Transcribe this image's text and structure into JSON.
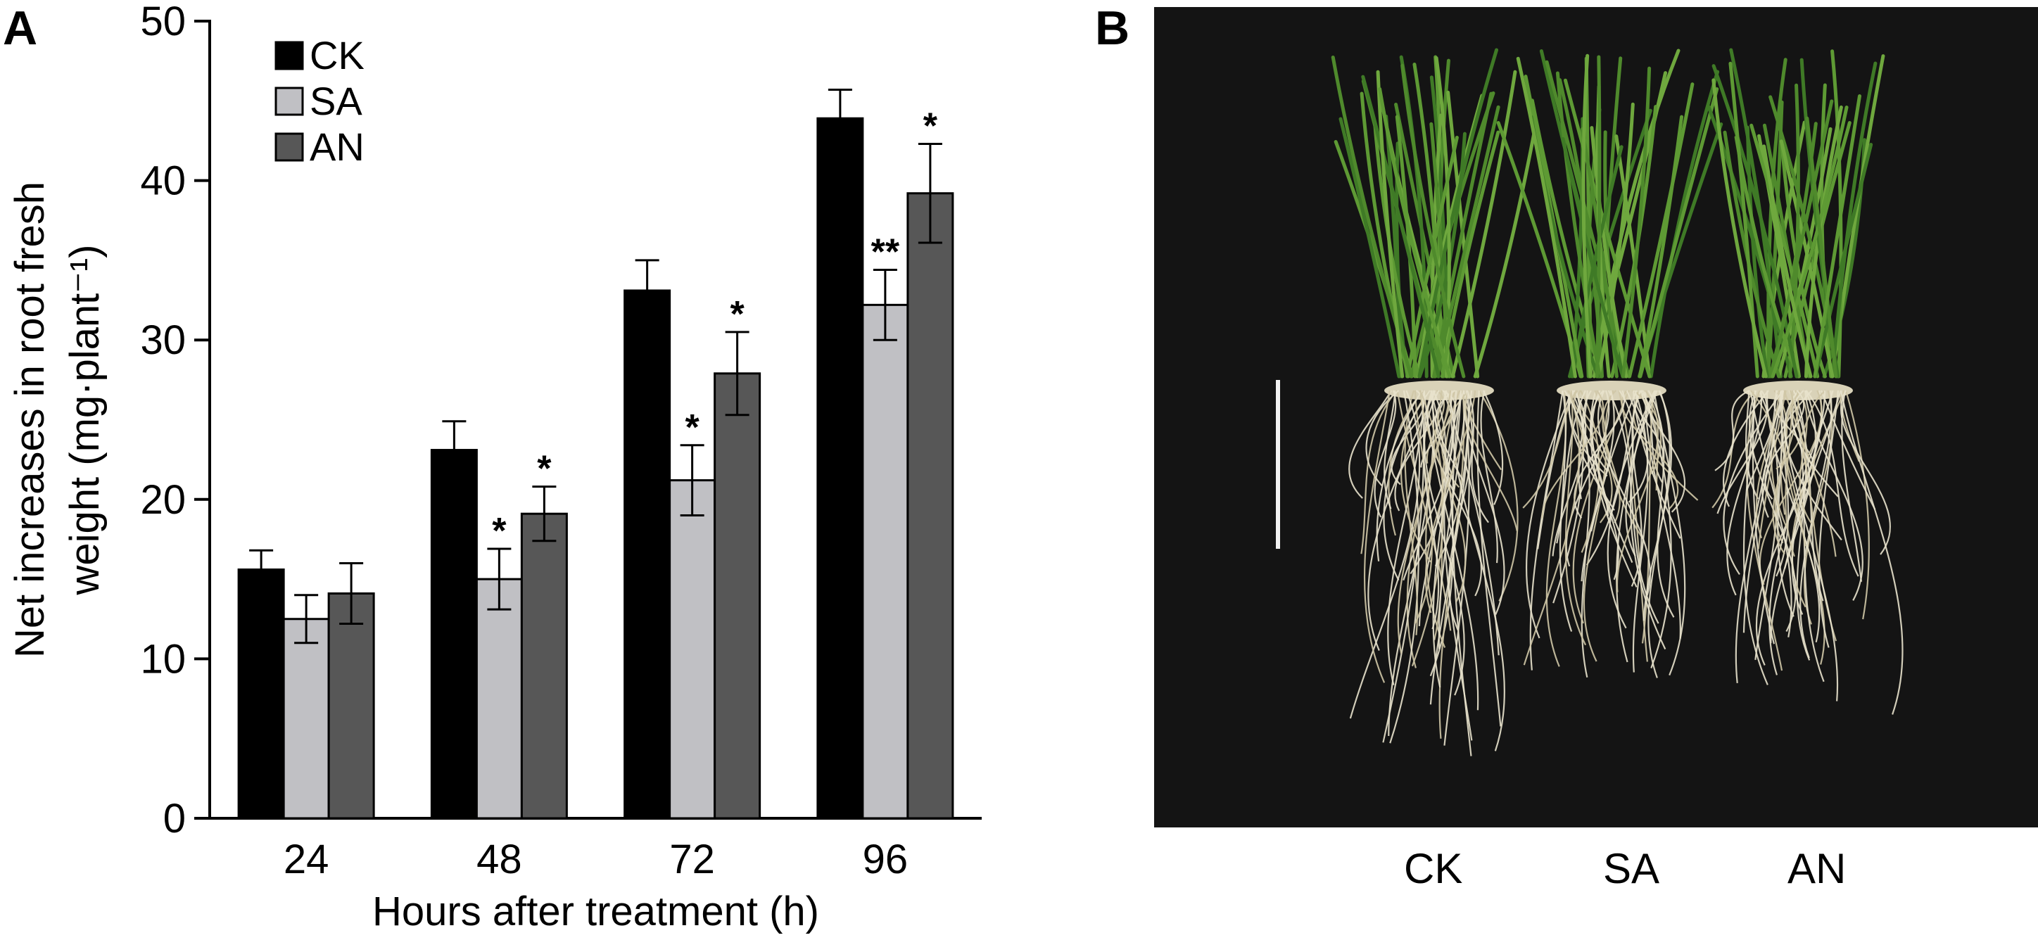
{
  "panel_a_label": "A",
  "panel_b_label": "B",
  "chart_data": {
    "type": "bar",
    "title": "",
    "xlabel": "Hours after treatment (h)",
    "ylabel_lines": [
      "Net increases in root fresh",
      "weight (mg·plant⁻¹)"
    ],
    "categories": [
      "24",
      "48",
      "72",
      "96"
    ],
    "ylim": [
      0,
      50
    ],
    "yticks": [
      0,
      10,
      20,
      30,
      40,
      50
    ],
    "legend_position": "top-left",
    "series": [
      {
        "name": "CK",
        "color": "#000000",
        "values": [
          15.6,
          23.1,
          33.1,
          43.9
        ],
        "errors": [
          1.2,
          1.8,
          1.9,
          1.8
        ],
        "marks": [
          "",
          "",
          "",
          ""
        ]
      },
      {
        "name": "SA",
        "color": "#c0c0c4",
        "values": [
          12.5,
          15.0,
          21.2,
          32.2
        ],
        "errors": [
          1.5,
          1.9,
          2.2,
          2.2
        ],
        "marks": [
          "",
          "*",
          "*",
          "**"
        ]
      },
      {
        "name": "AN",
        "color": "#575757",
        "values": [
          14.1,
          19.1,
          27.9,
          39.2
        ],
        "errors": [
          1.9,
          1.7,
          2.6,
          3.1
        ],
        "marks": [
          "",
          "*",
          "*",
          "*"
        ]
      }
    ]
  },
  "photo": {
    "labels": [
      "CK",
      "SA",
      "AN"
    ]
  }
}
